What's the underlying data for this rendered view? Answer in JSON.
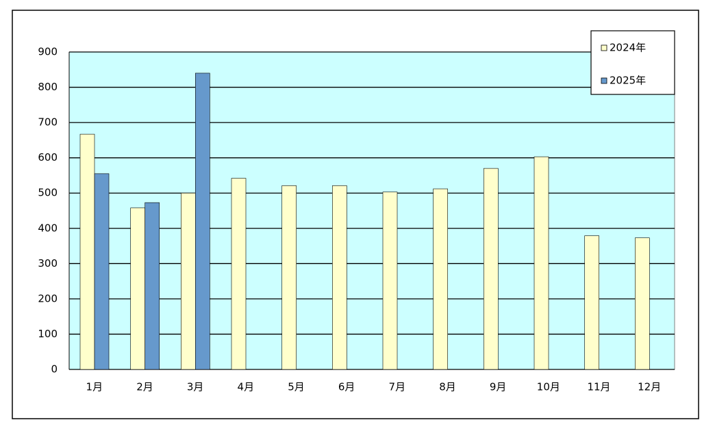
{
  "chart_data": {
    "type": "bar",
    "categories": [
      "1月",
      "2月",
      "3月",
      "4月",
      "5月",
      "6月",
      "7月",
      "8月",
      "9月",
      "10月",
      "11月",
      "12月"
    ],
    "series": [
      {
        "name": "2024年",
        "color": "#ffffcc",
        "values": [
          667,
          458,
          500,
          542,
          521,
          521,
          503,
          512,
          570,
          603,
          379,
          373
        ]
      },
      {
        "name": "2025年",
        "color": "#6699cc",
        "values": [
          555,
          473,
          840,
          null,
          null,
          null,
          null,
          null,
          null,
          null,
          null,
          null
        ]
      }
    ],
    "ylim": [
      0,
      900
    ],
    "yticks": [
      0,
      100,
      200,
      300,
      400,
      500,
      600,
      700,
      800,
      900
    ],
    "grid": true,
    "plot_background": "#ccffff",
    "legend": "top-right"
  }
}
